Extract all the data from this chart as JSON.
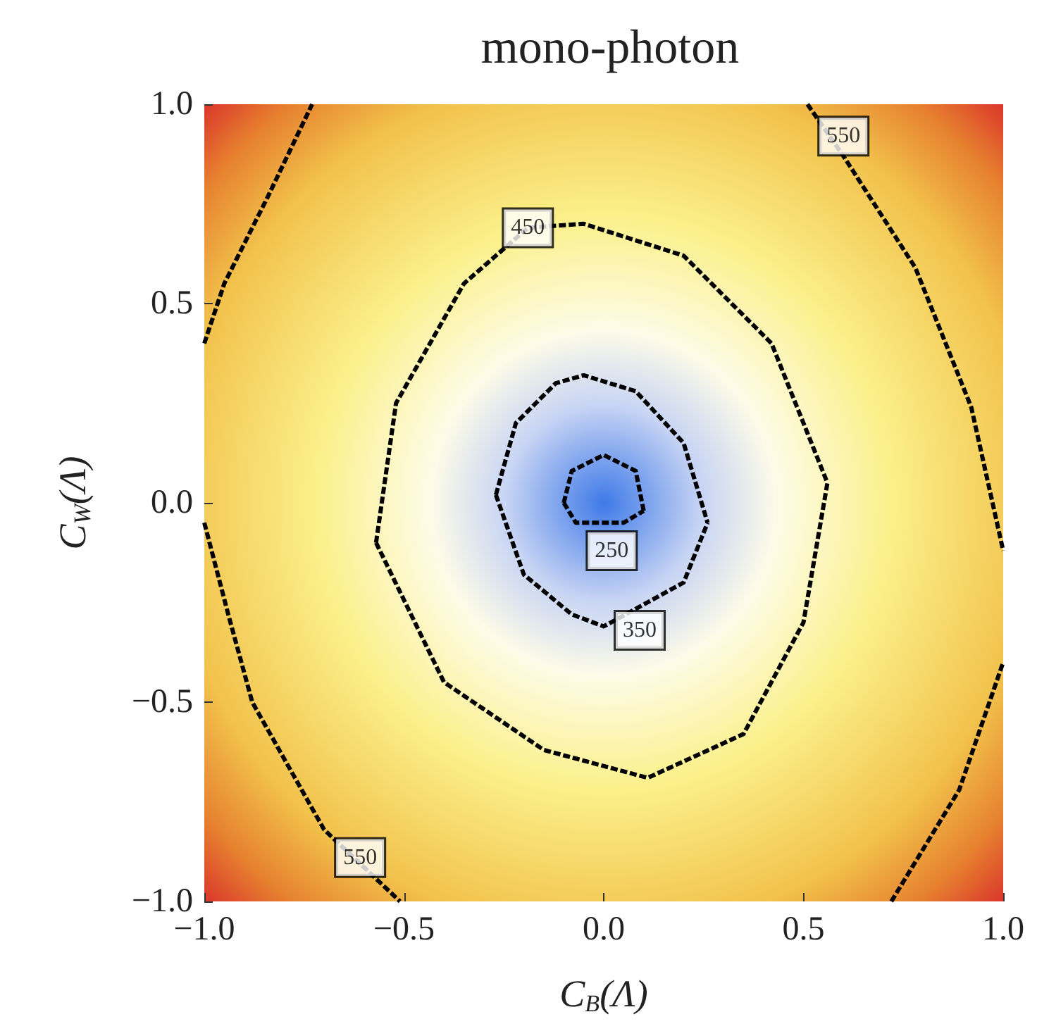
{
  "chart_data": {
    "type": "line",
    "title": "mono-photon",
    "xlabel": "C$_{B}$(Λ)",
    "ylabel": "C$_{W}$(Λ)",
    "xlim": [
      -1,
      1
    ],
    "ylim": [
      -1,
      1
    ],
    "xticks": [
      {
        "value": -1,
        "label": "−1.0"
      },
      {
        "value": -0.5,
        "label": "−0.5"
      },
      {
        "value": 0,
        "label": "0.0"
      },
      {
        "value": 0.5,
        "label": "0.5"
      },
      {
        "value": 1,
        "label": "1.0"
      }
    ],
    "yticks": [
      {
        "value": -1,
        "label": "−1.0"
      },
      {
        "value": -0.5,
        "label": "−0.5"
      },
      {
        "value": 0,
        "label": "0.0"
      },
      {
        "value": 0.5,
        "label": "0.5"
      },
      {
        "value": 1,
        "label": "1.0"
      }
    ],
    "line_style": "dashed",
    "marker": "none",
    "grid": false,
    "series": [
      {
        "color": "#000000",
        "x": [
          -0.1,
          -0.08,
          0.0,
          0.08,
          0.1
        ],
        "values": [
          0.0,
          0.08,
          0.12,
          0.08,
          -0.02
        ]
      },
      {
        "color": "#000000",
        "x": [
          -0.1,
          -0.07,
          0.05,
          0.1
        ],
        "values": [
          0.0,
          -0.05,
          -0.05,
          -0.02
        ]
      },
      {
        "color": "#000000",
        "x": [
          -0.27,
          -0.22,
          -0.12,
          -0.05,
          0.08,
          0.2,
          0.26
        ],
        "values": [
          0.02,
          0.2,
          0.3,
          0.32,
          0.28,
          0.15,
          -0.05
        ]
      },
      {
        "color": "#000000",
        "x": [
          -0.27,
          -0.2,
          -0.08,
          0.0,
          0.2,
          0.26
        ],
        "values": [
          0.02,
          -0.18,
          -0.28,
          -0.31,
          -0.2,
          -0.05
        ]
      },
      {
        "color": "#000000",
        "x": [
          -0.57,
          -0.52,
          -0.35,
          -0.19,
          -0.05,
          0.2,
          0.42,
          0.56
        ],
        "values": [
          -0.1,
          0.25,
          0.55,
          0.69,
          0.7,
          0.62,
          0.4,
          0.05
        ]
      },
      {
        "color": "#000000",
        "x": [
          -0.57,
          -0.4,
          -0.15,
          0.11,
          0.35,
          0.5,
          0.56
        ],
        "values": [
          -0.1,
          -0.45,
          -0.62,
          -0.69,
          -0.58,
          -0.3,
          0.05
        ]
      },
      {
        "color": "#000000",
        "x": [
          -1.0,
          -0.95,
          -0.84,
          -0.73
        ],
        "values": [
          0.4,
          0.55,
          0.77,
          1.0
        ]
      },
      {
        "color": "#000000",
        "x": [
          -1.0,
          -0.94,
          -0.88,
          -0.7,
          -0.51
        ],
        "values": [
          -0.05,
          -0.28,
          -0.5,
          -0.82,
          -1.0
        ]
      },
      {
        "color": "#000000",
        "x": [
          0.51,
          0.6,
          0.78,
          0.92,
          1.0
        ],
        "values": [
          1.0,
          0.87,
          0.59,
          0.24,
          -0.12
        ]
      },
      {
        "color": "#000000",
        "x": [
          0.72,
          0.89,
          1.0
        ],
        "values": [
          -1.0,
          -0.72,
          -0.4
        ]
      }
    ],
    "annotations": [
      {
        "text": "250",
        "x": 0.02,
        "y": -0.12
      },
      {
        "text": "350",
        "x": 0.09,
        "y": -0.32
      },
      {
        "text": "450",
        "x": -0.19,
        "y": 0.69
      },
      {
        "text": "550",
        "x": 0.6,
        "y": 0.92
      },
      {
        "text": "550",
        "x": -0.61,
        "y": -0.89
      }
    ]
  }
}
